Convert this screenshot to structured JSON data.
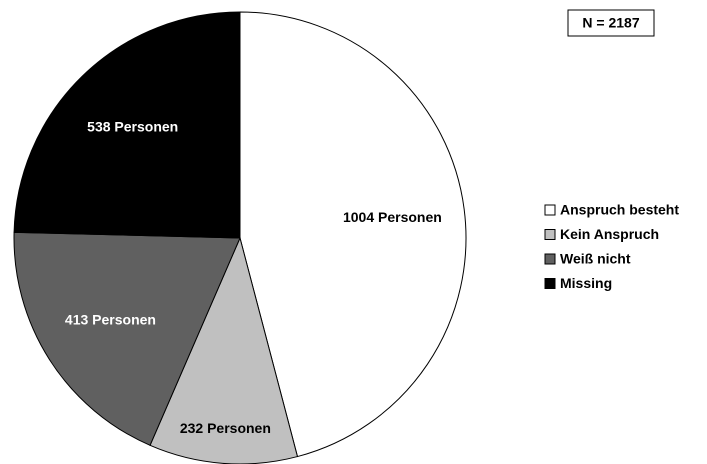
{
  "chart_data": {
    "type": "pie",
    "annotation": "N = 2187",
    "categories": [
      "Anspruch besteht",
      "Kein Anspruch",
      "Weiß nicht",
      "Missing"
    ],
    "values": [
      1004,
      232,
      413,
      538
    ],
    "value_labels": [
      "1004 Personen",
      "232 Personen",
      "413 Personen",
      "538 Personen"
    ],
    "colors": [
      "#ffffff",
      "#c0c0c0",
      "#606060",
      "#000000"
    ],
    "legend": "right"
  }
}
